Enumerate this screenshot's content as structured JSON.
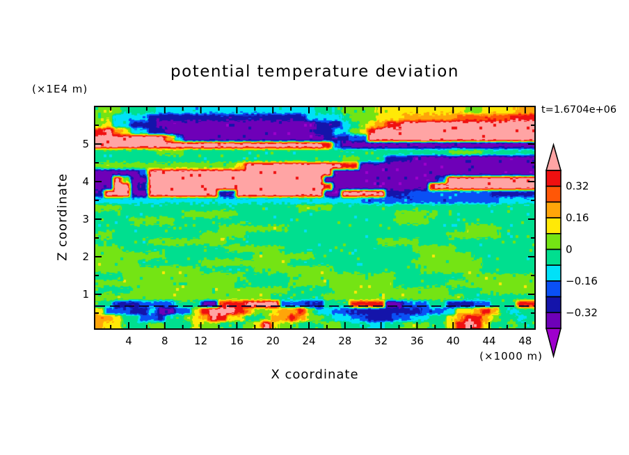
{
  "chart_data": {
    "type": "filled_contour",
    "title": "potential temperature deviation",
    "timestamp_label": "t=1.6704e+06",
    "xlabel": "X coordinate",
    "x_unit": "(×1000 m)",
    "ylabel": "Z coordinate",
    "y_unit": "(×1E4 m)",
    "x_ticks_major": [
      4,
      8,
      12,
      16,
      20,
      24,
      28,
      32,
      36,
      40,
      44,
      48
    ],
    "x_ticks_minor": [
      2,
      6,
      10,
      14,
      18,
      22,
      26,
      30,
      34,
      38,
      42,
      46
    ],
    "y_ticks_major": [
      1,
      2,
      3,
      4,
      5
    ],
    "y_ticks_minor": [
      0.5,
      1.5,
      2.5,
      3.5,
      4.5,
      5.5
    ],
    "xlim": [
      0.3,
      49.0
    ],
    "ylim": [
      0.06,
      5.95
    ],
    "contour_levels": [
      -0.4,
      -0.32,
      -0.24,
      -0.16,
      -0.08,
      0.0,
      0.08,
      0.16,
      0.24,
      0.32,
      0.4
    ],
    "level_colors": [
      "#9e00cc",
      "#6e00b8",
      "#1414aa",
      "#0a50f5",
      "#00e1f8",
      "#00df8f",
      "#74e414",
      "#ffe907",
      "#ffa509",
      "#ff5707",
      "#ef1010",
      "#ffa4a4"
    ],
    "colorbar": {
      "labels": [
        {
          "text": "0.32",
          "value": 0.32
        },
        {
          "text": "0.16",
          "value": 0.16
        },
        {
          "text": "0",
          "value": 0.0
        },
        {
          "text": "−0.16",
          "value": -0.16
        },
        {
          "text": "−0.32",
          "value": -0.32
        }
      ]
    },
    "features": {
      "dark_shear_line_z": 0.685
    },
    "field": {
      "nx": 50,
      "nz": 32,
      "value_key": {
        "pink": 0.44,
        "red": 0.36,
        "orangered": 0.28,
        "orange": 0.2,
        "yellow": 0.12,
        "green": 0.04,
        "springgreen": -0.04,
        "cyan": -0.12,
        "blue": -0.2,
        "navy": -0.28,
        "purple": -0.36,
        "magenta": -0.44
      },
      "rows_rle": [
        [
          [
            3,
            0.04
          ],
          [
            4,
            -0.04
          ],
          [
            18,
            -0.12
          ],
          [
            3,
            -0.04
          ],
          [
            4,
            0.04
          ],
          [
            10,
            0.12
          ],
          [
            2,
            0.04
          ],
          [
            4,
            0.12
          ],
          [
            2,
            0.2
          ]
        ],
        [
          [
            2,
            0.04
          ],
          [
            4,
            -0.12
          ],
          [
            18,
            -0.28
          ],
          [
            4,
            -0.12
          ],
          [
            1,
            -0.04
          ],
          [
            3,
            0.04
          ],
          [
            3,
            0.12
          ],
          [
            6,
            0.2
          ],
          [
            6,
            0.28
          ],
          [
            3,
            0.36
          ]
        ],
        [
          [
            1,
            0.04
          ],
          [
            1,
            0.12
          ],
          [
            2,
            -0.12
          ],
          [
            3,
            -0.28
          ],
          [
            18,
            -0.36
          ],
          [
            3,
            -0.28
          ],
          [
            1,
            -0.12
          ],
          [
            1,
            -0.04
          ],
          [
            1,
            0.04
          ],
          [
            1,
            0.12
          ],
          [
            1,
            0.2
          ],
          [
            2,
            0.36
          ],
          [
            15,
            0.44
          ]
        ],
        [
          [
            1,
            0.36
          ],
          [
            1,
            0.44
          ],
          [
            1,
            0.2
          ],
          [
            1,
            0.12
          ],
          [
            2,
            -0.12
          ],
          [
            2,
            -0.28
          ],
          [
            17,
            -0.36
          ],
          [
            2,
            -0.28
          ],
          [
            2,
            -0.12
          ],
          [
            1,
            0.04
          ],
          [
            1,
            0.12
          ],
          [
            1,
            0.36
          ],
          [
            18,
            0.44
          ]
        ],
        [
          [
            8,
            0.44
          ],
          [
            1,
            0.2
          ],
          [
            1,
            -0.12
          ],
          [
            16,
            -0.36
          ],
          [
            3,
            -0.28
          ],
          [
            2,
            -0.2
          ],
          [
            19,
            0.44
          ]
        ],
        [
          [
            26,
            0.44
          ],
          [
            1,
            0.36
          ],
          [
            1,
            -0.2
          ],
          [
            22,
            -0.36
          ]
        ],
        [
          [
            7,
            -0.04
          ],
          [
            3,
            0.04
          ],
          [
            30,
            -0.04
          ],
          [
            4,
            0.04
          ],
          [
            6,
            -0.04
          ]
        ],
        [
          [
            28,
            -0.04
          ],
          [
            2,
            0.04
          ],
          [
            3,
            -0.04
          ],
          [
            3,
            -0.28
          ],
          [
            14,
            -0.36
          ]
        ],
        [
          [
            16,
            0.04
          ],
          [
            1,
            0.12
          ],
          [
            11,
            0.44
          ],
          [
            2,
            0.36
          ],
          [
            20,
            -0.36
          ]
        ],
        [
          [
            5,
            -0.36
          ],
          [
            1,
            -0.2
          ],
          [
            21,
            0.44
          ],
          [
            23,
            -0.36
          ]
        ],
        [
          [
            2,
            -0.36
          ],
          [
            1,
            0.44
          ],
          [
            1,
            0.04
          ],
          [
            2,
            -0.36
          ],
          [
            20,
            0.44
          ],
          [
            13,
            -0.36
          ],
          [
            1,
            -0.2
          ],
          [
            10,
            0.44
          ]
        ],
        [
          [
            2,
            -0.36
          ],
          [
            2,
            0.44
          ],
          [
            1,
            -0.36
          ],
          [
            1,
            -0.28
          ],
          [
            20,
            0.44
          ],
          [
            1,
            0.36
          ],
          [
            11,
            -0.36
          ],
          [
            12,
            0.44
          ]
        ],
        [
          [
            1,
            -0.28
          ],
          [
            3,
            0.44
          ],
          [
            2,
            -0.36
          ],
          [
            8,
            0.44
          ],
          [
            2,
            -0.28
          ],
          [
            10,
            0.44
          ],
          [
            2,
            -0.36
          ],
          [
            5,
            0.44
          ],
          [
            3,
            -0.28
          ],
          [
            9,
            -0.2
          ],
          [
            5,
            -0.28
          ]
        ],
        [
          [
            30,
            -0.12
          ],
          [
            16,
            -0.2
          ],
          [
            4,
            -0.12
          ]
        ],
        [
          [
            3,
            0.04
          ],
          [
            20,
            -0.04
          ],
          [
            4,
            0.04
          ],
          [
            23,
            -0.04
          ]
        ],
        [
          [
            10,
            -0.04
          ],
          [
            6,
            0.04
          ],
          [
            18,
            -0.04
          ],
          [
            5,
            0.04
          ],
          [
            11,
            -0.04
          ]
        ],
        [
          [
            4,
            -0.04
          ],
          [
            5,
            0.04
          ],
          [
            25,
            -0.04
          ],
          [
            4,
            0.04
          ],
          [
            12,
            -0.04
          ]
        ],
        [
          [
            14,
            -0.04
          ],
          [
            8,
            0.04
          ],
          [
            20,
            -0.04
          ],
          [
            4,
            0.04
          ],
          [
            4,
            -0.04
          ]
        ],
        [
          [
            2,
            0.04
          ],
          [
            10,
            -0.04
          ],
          [
            5,
            0.04
          ],
          [
            23,
            -0.04
          ],
          [
            6,
            0.04
          ],
          [
            4,
            -0.04
          ]
        ],
        [
          [
            6,
            -0.04
          ],
          [
            9,
            0.04
          ],
          [
            17,
            -0.04
          ],
          [
            5,
            0.04
          ],
          [
            13,
            -0.04
          ]
        ],
        [
          [
            3,
            0.04
          ],
          [
            12,
            -0.04
          ],
          [
            6,
            0.04
          ],
          [
            15,
            -0.04
          ],
          [
            5,
            0.04
          ],
          [
            9,
            -0.04
          ]
        ],
        [
          [
            8,
            0.04
          ],
          [
            10,
            -0.04
          ],
          [
            7,
            0.04
          ],
          [
            12,
            -0.04
          ],
          [
            6,
            0.04
          ],
          [
            7,
            -0.04
          ]
        ],
        [
          [
            5,
            0.04
          ],
          [
            7,
            -0.04
          ],
          [
            10,
            0.04
          ],
          [
            14,
            -0.04
          ],
          [
            8,
            0.04
          ],
          [
            6,
            -0.04
          ]
        ],
        [
          [
            12,
            0.04
          ],
          [
            6,
            -0.04
          ],
          [
            9,
            0.04
          ],
          [
            10,
            -0.04
          ],
          [
            7,
            0.04
          ],
          [
            6,
            -0.04
          ]
        ],
        [
          [
            3,
            -0.04
          ],
          [
            14,
            0.04
          ],
          [
            5,
            -0.04
          ],
          [
            12,
            0.04
          ],
          [
            8,
            -0.04
          ],
          [
            8,
            0.04
          ]
        ],
        [
          [
            16,
            0.04
          ],
          [
            6,
            -0.04
          ],
          [
            12,
            0.04
          ],
          [
            6,
            -0.04
          ],
          [
            10,
            0.04
          ]
        ],
        [
          [
            4,
            -0.04
          ],
          [
            18,
            0.04
          ],
          [
            5,
            -0.04
          ],
          [
            13,
            0.04
          ],
          [
            4,
            -0.04
          ],
          [
            6,
            0.04
          ]
        ],
        [
          [
            20,
            0.04
          ],
          [
            6,
            -0.04
          ],
          [
            16,
            0.04
          ],
          [
            8,
            -0.04
          ]
        ],
        [
          [
            2,
            -0.04
          ],
          [
            3,
            -0.28
          ],
          [
            4,
            -0.2
          ],
          [
            3,
            -0.04
          ],
          [
            2,
            -0.36
          ],
          [
            3,
            0.36
          ],
          [
            4,
            0.44
          ],
          [
            3,
            -0.2
          ],
          [
            2,
            -0.28
          ],
          [
            3,
            -0.04
          ],
          [
            4,
            0.36
          ],
          [
            2,
            -0.36
          ],
          [
            3,
            -0.2
          ],
          [
            2,
            -0.04
          ],
          [
            3,
            -0.28
          ],
          [
            2,
            -0.2
          ],
          [
            3,
            -0.04
          ],
          [
            2,
            0.36
          ]
        ],
        [
          [
            1,
            0.12
          ],
          [
            3,
            -0.2
          ],
          [
            2,
            -0.28
          ],
          [
            1,
            -0.12
          ],
          [
            2,
            -0.36
          ],
          [
            2,
            -0.2
          ],
          [
            1,
            0.12
          ],
          [
            1,
            0.36
          ],
          [
            3,
            0.44
          ],
          [
            1,
            0.36
          ],
          [
            1,
            0.2
          ],
          [
            2,
            0.04
          ],
          [
            1,
            0.12
          ],
          [
            2,
            0.2
          ],
          [
            1,
            0.36
          ],
          [
            1,
            0.04
          ],
          [
            2,
            -0.12
          ],
          [
            2,
            -0.2
          ],
          [
            8,
            -0.28
          ],
          [
            3,
            -0.2
          ],
          [
            1,
            -0.12
          ],
          [
            2,
            0.12
          ],
          [
            1,
            0.2
          ],
          [
            1,
            0.36
          ],
          [
            1,
            0.2
          ],
          [
            1,
            -0.04
          ],
          [
            1,
            -0.12
          ],
          [
            2,
            -0.04
          ]
        ],
        [
          [
            2,
            0.2
          ],
          [
            1,
            0.12
          ],
          [
            2,
            -0.04
          ],
          [
            2,
            -0.2
          ],
          [
            1,
            -0.28
          ],
          [
            2,
            -0.04
          ],
          [
            1,
            0.04
          ],
          [
            1,
            0.12
          ],
          [
            1,
            0.2
          ],
          [
            1,
            0.44
          ],
          [
            1,
            0.36
          ],
          [
            2,
            0.12
          ],
          [
            2,
            -0.04
          ],
          [
            1,
            0.04
          ],
          [
            2,
            0.2
          ],
          [
            1,
            0.36
          ],
          [
            1,
            0.2
          ],
          [
            2,
            0.04
          ],
          [
            1,
            -0.04
          ],
          [
            2,
            -0.12
          ],
          [
            2,
            -0.2
          ],
          [
            3,
            -0.28
          ],
          [
            2,
            -0.2
          ],
          [
            2,
            -0.12
          ],
          [
            2,
            -0.04
          ],
          [
            1,
            0.12
          ],
          [
            1,
            0.2
          ],
          [
            2,
            0.36
          ],
          [
            1,
            0.2
          ],
          [
            1,
            0.04
          ],
          [
            2,
            -0.04
          ],
          [
            1,
            -0.12
          ],
          [
            1,
            -0.04
          ]
        ],
        [
          [
            1,
            0.2
          ],
          [
            2,
            0.12
          ],
          [
            3,
            -0.04
          ],
          [
            2,
            0.04
          ],
          [
            3,
            -0.04
          ],
          [
            1,
            0.12
          ],
          [
            2,
            0.04
          ],
          [
            3,
            -0.04
          ],
          [
            1,
            0.04
          ],
          [
            1,
            0.12
          ],
          [
            1,
            0.44
          ],
          [
            1,
            0.12
          ],
          [
            2,
            0.04
          ],
          [
            3,
            -0.04
          ],
          [
            2,
            0.04
          ],
          [
            3,
            -0.04
          ],
          [
            2,
            -0.12
          ],
          [
            2,
            -0.04
          ],
          [
            3,
            0.04
          ],
          [
            2,
            -0.04
          ],
          [
            1,
            0.12
          ],
          [
            1,
            0.36
          ],
          [
            1,
            0.44
          ],
          [
            1,
            0.36
          ],
          [
            1,
            0.12
          ],
          [
            2,
            -0.04
          ],
          [
            1,
            0.04
          ],
          [
            2,
            -0.04
          ]
        ]
      ]
    }
  }
}
